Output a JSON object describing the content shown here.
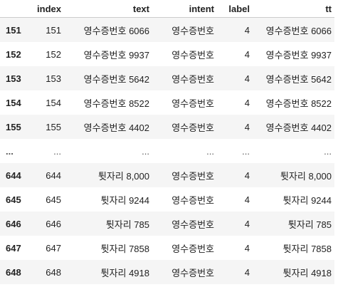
{
  "table": {
    "headers": [
      "",
      "index",
      "text",
      "intent",
      "label",
      "tt"
    ],
    "rows": [
      {
        "idx": "151",
        "index": "151",
        "text": "영수증번호 6066",
        "intent": "영수증번호",
        "label": "4",
        "tt": "영수증번호 6066"
      },
      {
        "idx": "152",
        "index": "152",
        "text": "영수증번호 9937",
        "intent": "영수증번호",
        "label": "4",
        "tt": "영수증번호 9937"
      },
      {
        "idx": "153",
        "index": "153",
        "text": "영수증번호 5642",
        "intent": "영수증번호",
        "label": "4",
        "tt": "영수증번호 5642"
      },
      {
        "idx": "154",
        "index": "154",
        "text": "영수증번호 8522",
        "intent": "영수증번호",
        "label": "4",
        "tt": "영수증번호 8522"
      },
      {
        "idx": "155",
        "index": "155",
        "text": "영수증번호 4402",
        "intent": "영수증번호",
        "label": "4",
        "tt": "영수증번호 4402"
      },
      {
        "idx": "...",
        "index": "...",
        "text": "...",
        "intent": "...",
        "label": "...",
        "tt": "..."
      },
      {
        "idx": "644",
        "index": "644",
        "text": "튓자리 8,000",
        "intent": "영수증번호",
        "label": "4",
        "tt": "튓자리 8,000"
      },
      {
        "idx": "645",
        "index": "645",
        "text": "튓자리 9244",
        "intent": "영수증번호",
        "label": "4",
        "tt": "튓자리 9244"
      },
      {
        "idx": "646",
        "index": "646",
        "text": "튓자리 785",
        "intent": "영수증번호",
        "label": "4",
        "tt": "튓자리 785"
      },
      {
        "idx": "647",
        "index": "647",
        "text": "튓자리 7858",
        "intent": "영수증번호",
        "label": "4",
        "tt": "튓자리 7858"
      },
      {
        "idx": "648",
        "index": "648",
        "text": "튓자리 4918",
        "intent": "영수증번호",
        "label": "4",
        "tt": "튓자리 4918"
      }
    ]
  }
}
